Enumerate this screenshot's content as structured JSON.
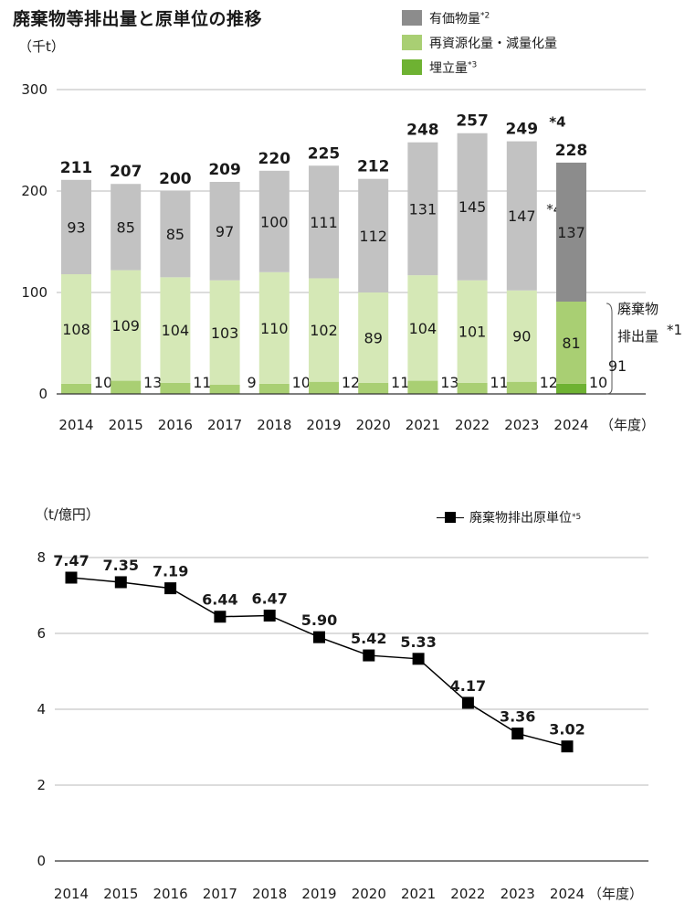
{
  "title": "廃棄物等排出量と原単位の推移",
  "chart_data": [
    {
      "type": "bar",
      "stacked": true,
      "unit": "（千t）",
      "categories": [
        "2014",
        "2015",
        "2016",
        "2017",
        "2018",
        "2019",
        "2020",
        "2021",
        "2022",
        "2023",
        "2024"
      ],
      "x_unit": "（年度）",
      "ylim": [
        0,
        300
      ],
      "yticks": [
        0,
        100,
        200,
        300
      ],
      "grid": true,
      "legend_position": "top-right",
      "legend": [
        {
          "label": "有価物量",
          "note": "*2",
          "color": "#8c8c8c"
        },
        {
          "label": "再資源化量・減量化量",
          "note": "",
          "color": "#a9cf73"
        },
        {
          "label": "埋立量",
          "note": "*3",
          "color": "#6eb232"
        }
      ],
      "series": [
        {
          "name": "埋立量",
          "values": [
            10,
            13,
            11,
            9,
            10,
            12,
            11,
            13,
            11,
            12,
            10
          ]
        },
        {
          "name": "再資源化量・減量化量",
          "values": [
            108,
            109,
            104,
            103,
            110,
            102,
            89,
            104,
            101,
            90,
            81
          ]
        },
        {
          "name": "有価物量",
          "values": [
            93,
            85,
            85,
            97,
            100,
            111,
            112,
            131,
            145,
            147,
            137
          ]
        }
      ],
      "totals": [
        211,
        207,
        200,
        209,
        220,
        225,
        212,
        248,
        257,
        249,
        228
      ],
      "total_notes": [
        "",
        "",
        "",
        "",
        "",
        "",
        "",
        "",
        "",
        "*4",
        ""
      ],
      "value_notes": {
        "有価物量": [
          "",
          "",
          "",
          "",
          "",
          "",
          "",
          "",
          "",
          "*4",
          ""
        ]
      },
      "annotation": {
        "line1": "廃棄物",
        "line2": "排出量",
        "note": "*1",
        "value": "91"
      }
    },
    {
      "type": "line",
      "unit": "（t/億円）",
      "x": [
        "2014",
        "2015",
        "2016",
        "2017",
        "2018",
        "2019",
        "2020",
        "2021",
        "2022",
        "2023",
        "2024"
      ],
      "x_unit": "（年度）",
      "ylim": [
        0,
        8
      ],
      "yticks": [
        0,
        2,
        4,
        6,
        8
      ],
      "grid": true,
      "legend_position": "top-right",
      "series": [
        {
          "name": "廃棄物排出原単位",
          "note": "*5",
          "marker": "square",
          "values": [
            7.47,
            7.35,
            7.19,
            6.44,
            6.47,
            5.9,
            5.42,
            5.33,
            4.17,
            3.36,
            3.02
          ],
          "labels": [
            "7.47",
            "7.35",
            "7.19",
            "6.44",
            "6.47",
            "5.90",
            "5.42",
            "5.33",
            "4.17",
            "3.36",
            "3.02"
          ]
        }
      ]
    }
  ]
}
